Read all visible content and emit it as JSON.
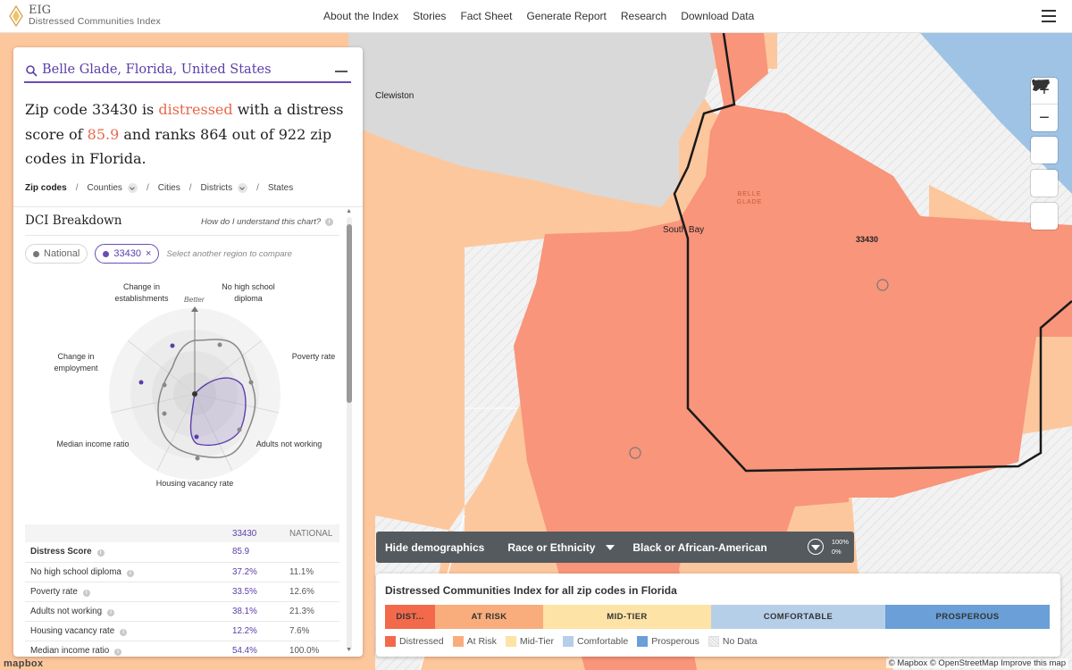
{
  "header": {
    "brand_short": "EIG",
    "brand_name": "Distressed Communities Index",
    "nav": [
      "About the Index",
      "Stories",
      "Fact Sheet",
      "Generate Report",
      "Research",
      "Download Data"
    ]
  },
  "search": {
    "value": "Belle Glade, Florida, United States"
  },
  "summary": {
    "pre": "Zip code 33430 is ",
    "status": "distressed",
    "mid": " with a distress score of ",
    "score": "85.9",
    "post": " and ranks 864 out of 922 zip codes in Florida."
  },
  "geo_tabs": [
    "Zip codes",
    "Counties",
    "Cities",
    "Districts",
    "States"
  ],
  "breakdown": {
    "title": "DCI Breakdown",
    "help": "How do I understand this chart?",
    "chip_national": "National",
    "chip_region": "33430",
    "compare_placeholder": "Select another region to compare",
    "better": "Better",
    "axes": {
      "establishments": "Change in establishments",
      "no_hs": "No high school diploma",
      "poverty": "Poverty rate",
      "adults": "Adults not working",
      "vacancy": "Housing vacancy rate",
      "income": "Median income ratio",
      "employment": "Change in employment"
    }
  },
  "table": {
    "headers": [
      "",
      "33430",
      "NATIONAL"
    ],
    "rows": [
      {
        "label": "Distress Score",
        "region": "85.9",
        "national": ""
      },
      {
        "label": "No high school diploma",
        "region": "37.2%",
        "national": "11.1%"
      },
      {
        "label": "Poverty rate",
        "region": "33.5%",
        "national": "12.6%"
      },
      {
        "label": "Adults not working",
        "region": "38.1%",
        "national": "21.3%"
      },
      {
        "label": "Housing vacancy rate",
        "region": "12.2%",
        "national": "7.6%"
      },
      {
        "label": "Median income ratio",
        "region": "54.4%",
        "national": "100.0%"
      }
    ]
  },
  "map": {
    "labels": {
      "clewiston": "Clewiston",
      "south_bay": "South Bay",
      "belle_glade": "BELLE GLADE",
      "zip": "33430"
    }
  },
  "demographics": {
    "hide": "Hide demographics",
    "category": "Race or Ethnicity",
    "group": "Black or African-American",
    "max": "100%",
    "min": "0%"
  },
  "legend": {
    "title": "Distressed Communities Index for all zip codes in Florida",
    "bar": [
      {
        "label": "DIST...",
        "color": "#f26a4b"
      },
      {
        "label": "AT RISK",
        "color": "#f9ad7d"
      },
      {
        "label": "MID-TIER",
        "color": "#fde3a6"
      },
      {
        "label": "COMFORTABLE",
        "color": "#b6cfe9"
      },
      {
        "label": "PROSPEROUS",
        "color": "#6a9fd7"
      }
    ],
    "keys": [
      "Distressed",
      "At Risk",
      "Mid-Tier",
      "Comfortable",
      "Prosperous",
      "No Data"
    ]
  },
  "attribution": "© Mapbox © OpenStreetMap  Improve this map",
  "mapbox": "mapbox"
}
